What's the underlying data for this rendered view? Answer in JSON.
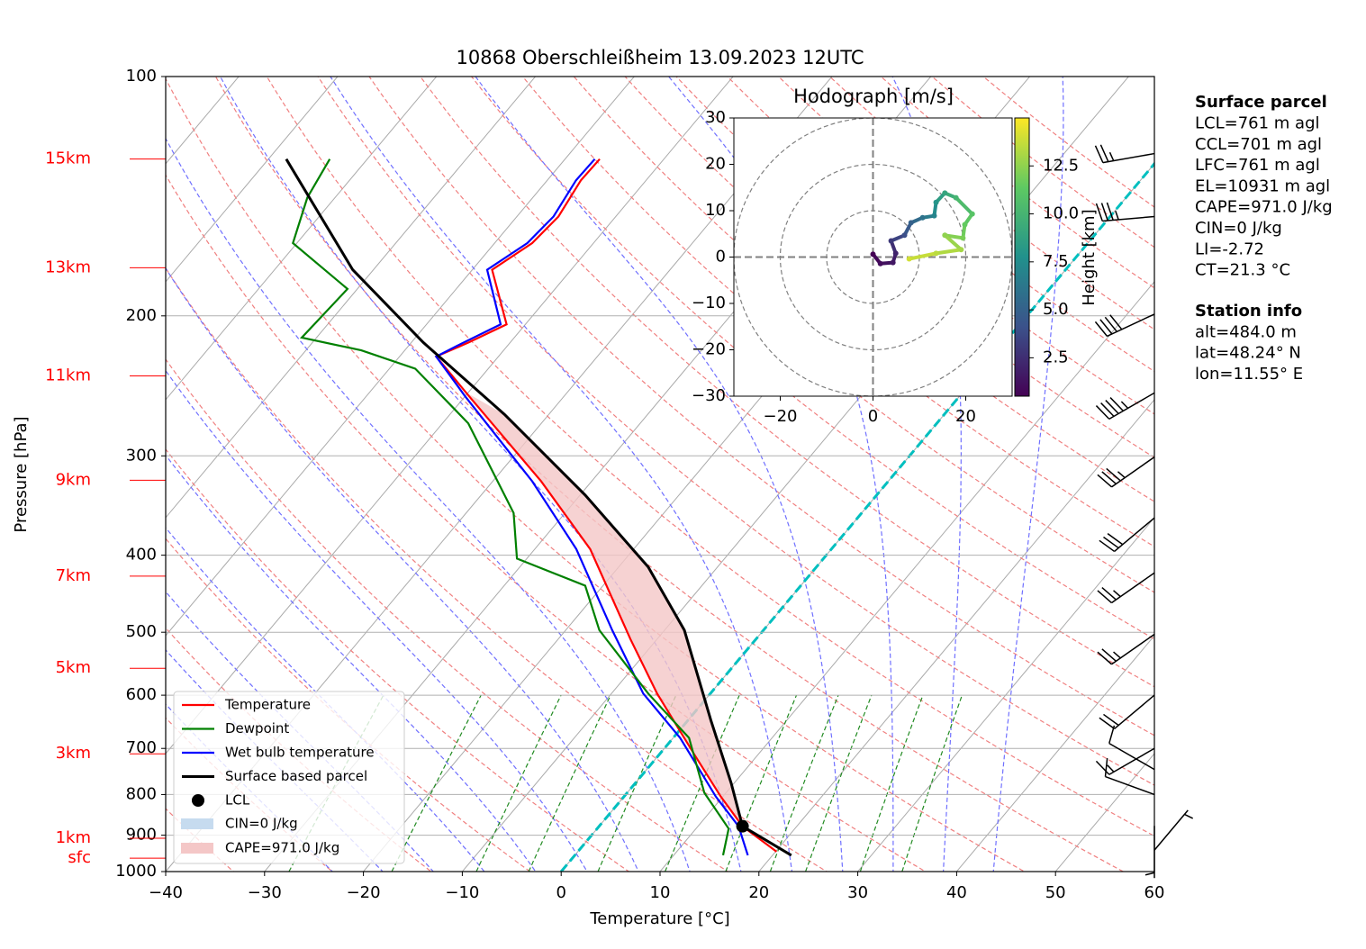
{
  "chart_data": [
    {
      "type": "skewt",
      "title": "10868 Oberschleißheim 13.09.2023 12UTC",
      "xlabel": "Temperature [°C]",
      "ylabel": "Pressure [hPa]",
      "xlim": [
        -40,
        60
      ],
      "ylim": [
        1000,
        100
      ],
      "log_y": true,
      "grid": true,
      "xticks": [
        {
          "value": -40,
          "label": "−40"
        },
        {
          "value": -30,
          "label": "−30"
        },
        {
          "value": -20,
          "label": "−20"
        },
        {
          "value": -10,
          "label": "−10"
        },
        0,
        10,
        20,
        30,
        40,
        50,
        60
      ],
      "yticks": [
        100,
        200,
        300,
        400,
        500,
        600,
        700,
        800,
        900,
        1000
      ],
      "height_ticks": [
        {
          "value": 127,
          "label": "15km"
        },
        {
          "value": 174,
          "label": "13km"
        },
        {
          "value": 238,
          "label": "11km"
        },
        {
          "value": 322,
          "label": "9km"
        },
        {
          "value": 425,
          "label": "7km"
        },
        {
          "value": 555,
          "label": "5km"
        },
        {
          "value": 711,
          "label": "3km"
        },
        {
          "value": 908,
          "label": "1km"
        },
        {
          "value": 962,
          "label": "sfc"
        }
      ],
      "height_tick_color": "#ff0000",
      "series": [
        {
          "name": "Temperature",
          "color": "#ff0000",
          "pressure": [
            944,
            877,
            805,
            716,
            597,
            510,
            393,
            323,
            252,
            225,
            216,
            205,
            175,
            162,
            150,
            135,
            127
          ],
          "values": [
            20.1,
            14.5,
            9.8,
            3.8,
            -5.4,
            -12.7,
            -24.4,
            -35.1,
            -49.7,
            -56.3,
            -54.2,
            -51.9,
            -58.0,
            -56.2,
            -55.8,
            -56.6,
            -56.5
          ]
        },
        {
          "name": "Dewpoint",
          "color": "#008000",
          "pressure": [
            954,
            883,
            796,
            679,
            597,
            497,
            437,
            404,
            354,
            273,
            233,
            221,
            213,
            185,
            162,
            142,
            127
          ],
          "values": [
            15.0,
            13.3,
            7.8,
            1.6,
            -6.3,
            -16.6,
            -21.8,
            -31.0,
            -35.2,
            -47.4,
            -57.4,
            -64.4,
            -71.5,
            -71.0,
            -80.4,
            -82.8,
            -83.8
          ]
        },
        {
          "name": "Wet bulb temperature",
          "color": "#0000ff",
          "pressure": [
            954,
            877,
            805,
            679,
            597,
            497,
            393,
            323,
            252,
            225,
            216,
            205,
            175,
            162,
            150,
            135,
            127
          ],
          "values": [
            17.5,
            14.1,
            9.3,
            0.7,
            -6.8,
            -15.3,
            -25.8,
            -36.0,
            -50.1,
            -56.3,
            -54.7,
            -52.5,
            -58.5,
            -56.7,
            -56.3,
            -57.1,
            -57.0
          ]
        },
        {
          "name": "Surface based parcel",
          "color": "#000000",
          "pressure": [
            954,
            877,
            774,
            645,
            497,
            414,
            336,
            266,
            216,
            175,
            127
          ],
          "values": [
            21.9,
            14.5,
            9.7,
            2.3,
            -8.0,
            -17.0,
            -29.5,
            -44.5,
            -58.8,
            -72.1,
            -88.2
          ]
        }
      ],
      "lcl": {
        "name": "LCL",
        "pressure": 877,
        "value": 14.5,
        "color": "#000000"
      },
      "cin": {
        "name": "CIN=0 J/kg",
        "color": "#c6dbef"
      },
      "cape": {
        "name": "CAPE=971.0 J/kg",
        "color": "#f4c7c7"
      },
      "wind": {
        "pressure": [
          125,
          150,
          199,
          250,
          301,
          359,
          421,
          503,
          600,
          700,
          744,
          800,
          876,
          940
        ],
        "direction": [
          260,
          265,
          245,
          240,
          235,
          230,
          235,
          235,
          230,
          240,
          300,
          290,
          180,
          40
        ],
        "speed": [
          25,
          35,
          40,
          45,
          35,
          30,
          25,
          25,
          20,
          15,
          10,
          10,
          5,
          5
        ]
      },
      "info": [
        {
          "title": "Surface parcel",
          "lines": [
            "LCL=761 m agl",
            "CCL=701 m agl",
            "LFC=761 m agl",
            "EL=10931 m agl",
            "CAPE=971.0 J/kg",
            "CIN=0 J/kg",
            "LI=-2.72",
            "CT=21.3 °C"
          ]
        },
        {
          "title": "Station info",
          "lines": [
            "alt=484.0 m",
            "lat=48.24° N",
            "lon=11.55° E"
          ]
        }
      ]
    },
    {
      "type": "hodograph",
      "title": "Hodograph [m/s]",
      "xlim": [
        -30,
        30
      ],
      "ylim": [
        -30,
        30
      ],
      "xticks": [
        {
          "value": -20,
          "label": "−20"
        },
        0,
        20
      ],
      "yticks": [
        {
          "value": -30,
          "label": "−30"
        },
        {
          "value": -20,
          "label": "−20"
        },
        {
          "value": -10,
          "label": "−10"
        },
        0,
        10,
        20,
        30
      ],
      "u": [
        0.0,
        1.6,
        4.3,
        4.9,
        3.9,
        6.8,
        8.2,
        10.7,
        13.2,
        13.6,
        15.5,
        17.9,
        21.4,
        19.8,
        19.4,
        15.5,
        19.0,
        13.6,
        7.8
      ],
      "v": [
        0.6,
        -1.4,
        -1.2,
        0.8,
        3.5,
        4.7,
        7.4,
        8.5,
        8.9,
        11.8,
        13.8,
        12.8,
        9.3,
        7.0,
        4.1,
        4.7,
        1.6,
        0.8,
        -0.4
      ],
      "height": [
        0.5,
        1,
        1.5,
        2,
        3,
        4,
        5,
        6,
        7,
        8,
        9,
        10,
        11,
        11.5,
        12,
        12.5,
        13,
        13.5,
        14
      ],
      "colorbar": {
        "label": "Height [km]",
        "lim": [
          0.5,
          15.0
        ],
        "ticks": [
          2.5,
          {
            "value": 5,
            "label": "5.0"
          },
          7.5,
          {
            "value": 10,
            "label": "10.0"
          },
          12.5
        ]
      }
    }
  ]
}
